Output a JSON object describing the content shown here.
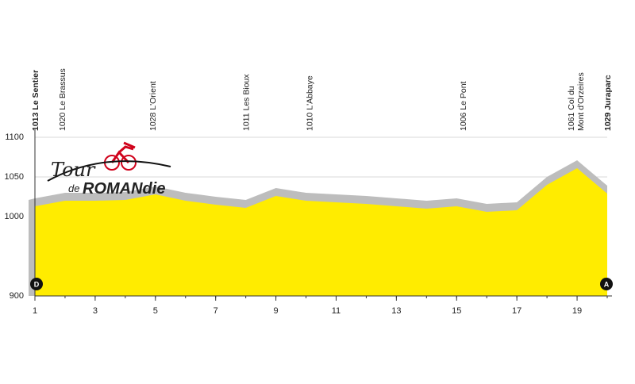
{
  "chart_data": {
    "type": "area",
    "x": [
      1,
      2,
      3,
      4,
      5,
      6,
      7,
      8,
      9,
      10,
      11,
      12,
      13,
      14,
      15,
      16,
      17,
      18,
      19,
      20
    ],
    "values": [
      1013,
      1020,
      1020,
      1021,
      1028,
      1020,
      1015,
      1011,
      1026,
      1020,
      1018,
      1016,
      1013,
      1010,
      1013,
      1006,
      1008,
      1040,
      1061,
      1029
    ],
    "color": "#ffec00",
    "shadow_color": "#bdbdbd",
    "xlim": [
      1,
      20
    ],
    "ylim": [
      900,
      1100
    ],
    "xticks": [
      1,
      3,
      5,
      7,
      9,
      11,
      13,
      15,
      17,
      19
    ],
    "yticks": [
      900,
      1000,
      1050,
      1100
    ],
    "grid": true,
    "annotations": [
      {
        "x": 1,
        "lines": [
          "1013 Le Sentier"
        ],
        "bold": true
      },
      {
        "x": 1.9,
        "lines": [
          "1020 Le Brassus"
        ],
        "bold": false
      },
      {
        "x": 4.9,
        "lines": [
          "1028 L'Orient"
        ],
        "bold": false
      },
      {
        "x": 8,
        "lines": [
          "1011 Les Bioux"
        ],
        "bold": false
      },
      {
        "x": 10.1,
        "lines": [
          "1010 L'Abbaye"
        ],
        "bold": false
      },
      {
        "x": 15.2,
        "lines": [
          "1006 Le Pont"
        ],
        "bold": false
      },
      {
        "x": 19.1,
        "lines": [
          "1061 Col du",
          "Mont d'Orzeires"
        ],
        "bold": false
      },
      {
        "x": 20,
        "lines": [
          "1029 Juraparc"
        ],
        "bold": true
      }
    ],
    "start_marker": "D",
    "end_marker": "A",
    "logo": {
      "line1": "Tour",
      "line2a": "de",
      "line2b": "ROMANdie"
    }
  }
}
